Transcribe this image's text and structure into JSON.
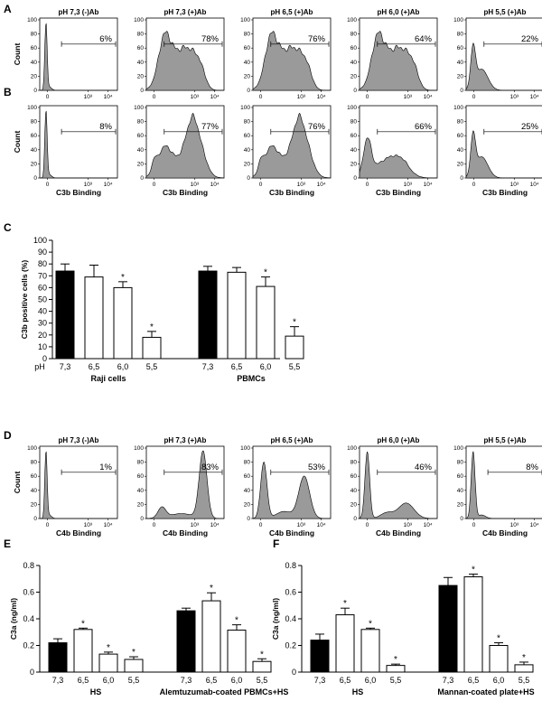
{
  "panel_letters": [
    "A",
    "B",
    "C",
    "D",
    "E",
    "F"
  ],
  "colors": {
    "fill": "#9a9a9a",
    "black": "#000000",
    "white": "#ffffff"
  },
  "chart_data": [
    {
      "id": "A",
      "type": "histogram",
      "ylabel": "Count",
      "xlabel": "",
      "yticks": [
        "0",
        "20",
        "40",
        "60",
        "80",
        "100"
      ],
      "xticks": [
        "0",
        "10³",
        "10⁴"
      ],
      "gate_marker": "⊢",
      "plots": [
        {
          "title": "pH 7,3 (-)Ab",
          "percent": "6%",
          "shape": "negative"
        },
        {
          "title": "pH 7,3 (+)Ab",
          "percent": "78%",
          "shape": "broad"
        },
        {
          "title": "pH 6,5 (+)Ab",
          "percent": "76%",
          "shape": "broad"
        },
        {
          "title": "pH 6,0 (+)Ab",
          "percent": "64%",
          "shape": "broad"
        },
        {
          "title": "pH 5,5 (+)Ab",
          "percent": "22%",
          "shape": "left"
        }
      ]
    },
    {
      "id": "B",
      "type": "histogram",
      "ylabel": "Count",
      "xlabel": "C3b Binding",
      "yticks": [
        "0",
        "20",
        "40",
        "60",
        "80",
        "100"
      ],
      "xticks": [
        "0",
        "10³",
        "10⁴"
      ],
      "gate_marker": "⊢",
      "plots": [
        {
          "percent": "8%",
          "shape": "negative"
        },
        {
          "percent": "77%",
          "shape": "rising"
        },
        {
          "percent": "76%",
          "shape": "rising"
        },
        {
          "percent": "66%",
          "shape": "plateau"
        },
        {
          "percent": "25%",
          "shape": "left"
        }
      ]
    },
    {
      "id": "C",
      "type": "bar",
      "ylabel": "C3b positive cells (%)",
      "ylim": [
        0,
        100
      ],
      "yticks": [
        "0",
        "10",
        "20",
        "30",
        "40",
        "50",
        "60",
        "70",
        "80",
        "90",
        "100"
      ],
      "ph_label": "pH",
      "groups": [
        {
          "name": "Raji cells",
          "categories": [
            "7,3",
            "6,5",
            "6,0",
            "5,5"
          ],
          "values": [
            74,
            69,
            60,
            18
          ],
          "errors": [
            6,
            10,
            5,
            5
          ],
          "stars": [
            "",
            "",
            "*",
            "*"
          ],
          "fills": [
            "black",
            "white",
            "white",
            "white"
          ]
        },
        {
          "name": "PBMCs",
          "categories": [
            "7,3",
            "6,5",
            "6,0",
            "5,5"
          ],
          "values": [
            74,
            73,
            61,
            19
          ],
          "errors": [
            4,
            4,
            8,
            8
          ],
          "stars": [
            "",
            "",
            "*",
            "*"
          ],
          "fills": [
            "black",
            "white",
            "white",
            "white"
          ]
        }
      ]
    },
    {
      "id": "D",
      "type": "histogram",
      "ylabel": "Count",
      "xlabel": "C4b Binding",
      "yticks": [
        "0",
        "20",
        "40",
        "60",
        "80",
        "100"
      ],
      "xticks": [
        "0",
        "10³",
        "10⁴"
      ],
      "gate_marker": "⊢",
      "plots": [
        {
          "title": "pH 7,3 (-)Ab",
          "percent": "1%",
          "shape": "negative"
        },
        {
          "title": "pH 7,3 (+)Ab",
          "percent": "83%",
          "shape": "rightpeak"
        },
        {
          "title": "pH 6,5 (+)Ab",
          "percent": "53%",
          "shape": "bimodal"
        },
        {
          "title": "pH 6,0 (+)Ab",
          "percent": "46%",
          "shape": "bimodal2"
        },
        {
          "title": "pH 5,5 (+)Ab",
          "percent": "8%",
          "shape": "negative2"
        }
      ]
    },
    {
      "id": "E",
      "type": "bar",
      "ylabel": "C3a (ng/ml)",
      "ylim": [
        0,
        0.8
      ],
      "yticks": [
        "0",
        "0.2",
        "0.4",
        "0.6",
        "0.8"
      ],
      "groups": [
        {
          "name": "HS",
          "categories": [
            "7,3",
            "6,5",
            "6,0",
            "5,5"
          ],
          "values": [
            0.22,
            0.32,
            0.135,
            0.095
          ],
          "errors": [
            0.03,
            0.01,
            0.015,
            0.02
          ],
          "stars": [
            "",
            "*",
            "*",
            "*"
          ],
          "fills": [
            "black",
            "white",
            "white",
            "white"
          ]
        },
        {
          "name": "Alemtuzumab-coated PBMCs+HS",
          "categories": [
            "7,3",
            "6,5",
            "6,0",
            "5,5"
          ],
          "values": [
            0.46,
            0.535,
            0.315,
            0.08
          ],
          "errors": [
            0.02,
            0.06,
            0.04,
            0.02
          ],
          "stars": [
            "",
            "*",
            "*",
            "*"
          ],
          "fills": [
            "black",
            "white",
            "white",
            "white"
          ]
        }
      ]
    },
    {
      "id": "F",
      "type": "bar",
      "ylabel": "C3a (ng/ml)",
      "ylim": [
        0,
        0.8
      ],
      "yticks": [
        "0",
        "0.2",
        "0.4",
        "0.6",
        "0.8"
      ],
      "groups": [
        {
          "name": "HS",
          "categories": [
            "7,3",
            "6,5",
            "6,0",
            "5,5"
          ],
          "values": [
            0.24,
            0.43,
            0.32,
            0.05
          ],
          "errors": [
            0.045,
            0.05,
            0.01,
            0.01
          ],
          "stars": [
            "",
            "*",
            "*",
            "*"
          ],
          "fills": [
            "black",
            "white",
            "white",
            "white"
          ]
        },
        {
          "name": "Mannan-coated plate+HS",
          "categories": [
            "7,3",
            "6,5",
            "6,0",
            "5,5"
          ],
          "values": [
            0.65,
            0.715,
            0.2,
            0.055
          ],
          "errors": [
            0.06,
            0.02,
            0.02,
            0.02
          ],
          "stars": [
            "",
            "*",
            "*",
            "*"
          ],
          "fills": [
            "black",
            "white",
            "white",
            "white"
          ]
        }
      ]
    }
  ]
}
